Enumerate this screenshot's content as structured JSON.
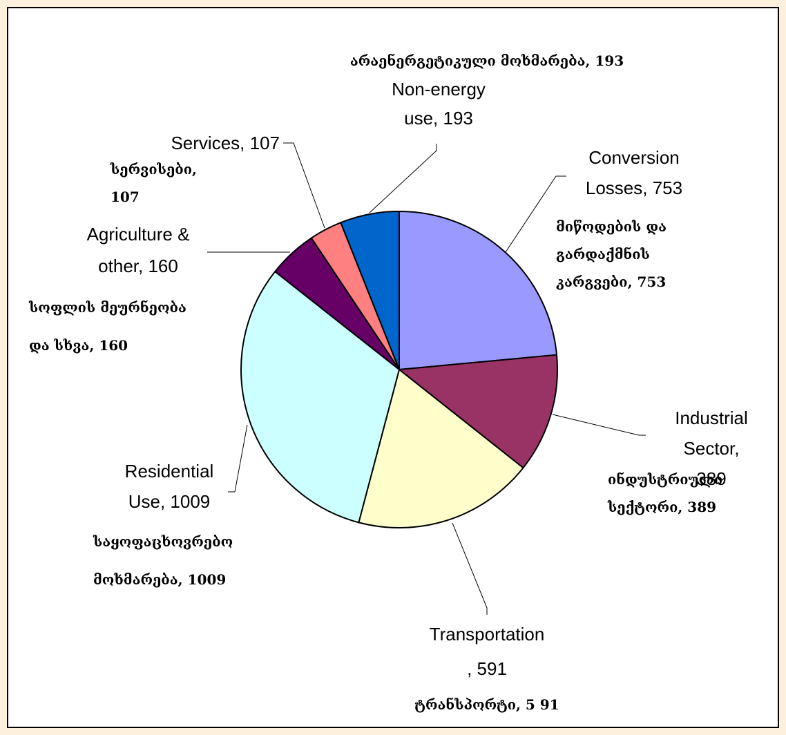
{
  "chart_data": {
    "type": "pie",
    "values": [
      753,
      389,
      591,
      1009,
      160,
      107,
      193
    ],
    "value_labels": [
      "Conversion\nLosses, 753",
      "Industrial\nSector, 389",
      "Transportation\n, 591",
      "Residential\nUse, 1009",
      "Agriculture &\nother, 160",
      "Services, 107",
      "Non-energy\nuse, 193"
    ],
    "value_labels_ka": [
      "მიწოდების და\nგარდაქმნის\nკარგვები, 753",
      "ინდუსტრიული\nსექტორი, 389",
      "ტრანსპორტი,   5 91",
      "საყოფაცხოვრებო\nმოხმარება,    1009",
      "სოფლის მეურნეობა\nდა სხვა, 160",
      "სერვისები,\n107",
      "არაენერგეტიკული მოხმარება, 193"
    ],
    "colors": [
      "#9999ff",
      "#993366",
      "#ffffcc",
      "#ccffff",
      "#660066",
      "#ff8080",
      "#0066cc"
    ]
  }
}
